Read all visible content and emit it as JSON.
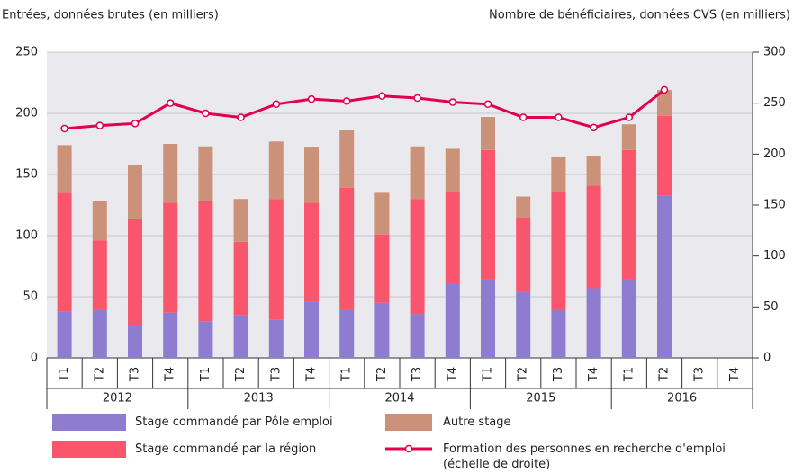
{
  "chart_data": {
    "type": "bar",
    "ylabel": "Entrées, données brutes (en milliers)",
    "y2label": "Nombre de bénéficiaires, données CVS (en milliers)",
    "categories": [
      "T1",
      "T2",
      "T3",
      "T4",
      "T1",
      "T2",
      "T3",
      "T4",
      "T1",
      "T2",
      "T3",
      "T4",
      "T1",
      "T2",
      "T3",
      "T4",
      "T1",
      "T2",
      "T3",
      "T4"
    ],
    "years": [
      "2012",
      "2013",
      "2014",
      "2015",
      "2016"
    ],
    "ylim": [
      0,
      250
    ],
    "yticks": [
      0,
      50,
      100,
      150,
      200,
      250
    ],
    "y2lim": [
      0,
      300
    ],
    "y2ticks": [
      0,
      50,
      100,
      150,
      200,
      250,
      300
    ],
    "series": [
      {
        "name": "Stage commandé par Pôle emploi",
        "color": "#8e7cd0",
        "type": "bar",
        "values": [
          38,
          39,
          26,
          37,
          30,
          35,
          31,
          46,
          39,
          45,
          36,
          61,
          64,
          54,
          39,
          57,
          64,
          133,
          null,
          null
        ]
      },
      {
        "name": "Stage commandé par la région",
        "color": "#f9566e",
        "type": "bar",
        "values": [
          97,
          57,
          88,
          90,
          98,
          60,
          99,
          81,
          100,
          56,
          94,
          75,
          106,
          61,
          97,
          84,
          106,
          65,
          null,
          null
        ]
      },
      {
        "name": "Autre stage",
        "color": "#cc9279",
        "type": "bar",
        "values": [
          39,
          32,
          44,
          48,
          45,
          35,
          47,
          45,
          47,
          34,
          43,
          35,
          27,
          17,
          28,
          24,
          21,
          21,
          null,
          null
        ]
      },
      {
        "name": "Formation des personnes en recherche d'emploi (échelle de droite)",
        "color": "#e0004d",
        "type": "line",
        "axis": "y2",
        "values": [
          225,
          228,
          230,
          250,
          240,
          236,
          249,
          254,
          252,
          257,
          255,
          251,
          249,
          236,
          236,
          226,
          236,
          263,
          null,
          null
        ]
      }
    ]
  }
}
